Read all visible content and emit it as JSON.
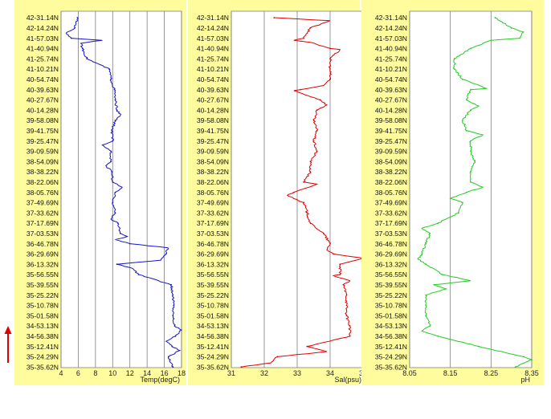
{
  "chart_data": {
    "type": "line",
    "latitude_labels": [
      "42-31.14N",
      "42-14.24N",
      "41-57.03N",
      "41-40.94N",
      "41-25.74N",
      "41-10.21N",
      "40-54.74N",
      "40-39.63N",
      "40-27.67N",
      "40-14.28N",
      "39-58.08N",
      "39-41.75N",
      "39-25.47N",
      "39-09.59N",
      "38-54.09N",
      "38-38.22N",
      "38-22.06N",
      "38-05.76N",
      "37-49.69N",
      "37-33.62N",
      "37-17.69N",
      "37-03.53N",
      "36-46.78N",
      "36-29.69N",
      "36-13.32N",
      "35-56.55N",
      "35-39.55N",
      "35-25.22N",
      "35-10.78N",
      "35-01.58N",
      "34-53.13N",
      "34-56.38N",
      "35-12.41N",
      "35-24.29N",
      "35-35.62N"
    ],
    "panels": [
      {
        "id": "temp",
        "xlabel": "Temp(degC)",
        "xlim": [
          4,
          18
        ],
        "ticks": [
          "4",
          "6",
          "8",
          "10",
          "12",
          "14",
          "16",
          "18"
        ],
        "color": "#1515c8",
        "values": [
          5.9,
          5.6,
          5.2,
          6.5,
          7.0,
          9.6,
          9.8,
          10.2,
          10.3,
          10.5,
          10.3,
          9.9,
          10.0,
          9.8,
          9.8,
          9.9,
          10.0,
          10.3,
          10.0,
          10.3,
          10.6,
          10.9,
          12.0,
          16.2,
          10.5,
          13.0,
          16.8,
          17.0,
          17.1,
          17.0,
          17.2,
          17.3,
          16.9,
          16.5,
          17.0
        ],
        "extra": [
          {
            "i": 1.5,
            "v": 4.6
          },
          {
            "i": 2.2,
            "v": 8.8
          },
          {
            "i": 2.5,
            "v": 6.3
          },
          {
            "i": 9.5,
            "v": 10.9
          },
          {
            "i": 12.4,
            "v": 8.8
          },
          {
            "i": 14.4,
            "v": 9.2
          },
          {
            "i": 16.5,
            "v": 11.1
          },
          {
            "i": 19.6,
            "v": 9.8
          },
          {
            "i": 21.3,
            "v": 11.7
          },
          {
            "i": 21.6,
            "v": 10.3
          },
          {
            "i": 22.4,
            "v": 16.4
          },
          {
            "i": 23.6,
            "v": 15.6
          },
          {
            "i": 24.4,
            "v": 12.3
          },
          {
            "i": 30.4,
            "v": 18.0
          },
          {
            "i": 31.5,
            "v": 16.2
          },
          {
            "i": 32.4,
            "v": 17.8
          }
        ]
      },
      {
        "id": "sal",
        "xlabel": "Sal(psu)",
        "xlim": [
          31,
          35
        ],
        "ticks": [
          "31",
          "32",
          "33",
          "34",
          "35"
        ],
        "color": "#e00000",
        "values": [
          32.3,
          33.4,
          33.2,
          34.0,
          34.0,
          34.0,
          34.0,
          33.1,
          33.7,
          33.6,
          33.5,
          33.6,
          33.5,
          33.6,
          33.4,
          33.4,
          33.2,
          32.9,
          33.2,
          33.3,
          33.4,
          33.8,
          34.0,
          34.1,
          34.3,
          34.3,
          34.4,
          34.5,
          34.5,
          34.5,
          34.6,
          34.6,
          33.3,
          32.4,
          31.3
        ],
        "extra": [
          {
            "i": 0.3,
            "v": 34.0
          },
          {
            "i": 2.2,
            "v": 32.9
          },
          {
            "i": 2.4,
            "v": 33.4
          },
          {
            "i": 3.1,
            "v": 34.3
          },
          {
            "i": 6.6,
            "v": 33.8
          },
          {
            "i": 7.1,
            "v": 32.9
          },
          {
            "i": 8.5,
            "v": 33.9
          },
          {
            "i": 16.2,
            "v": 33.6
          },
          {
            "i": 17.3,
            "v": 32.7
          },
          {
            "i": 22.6,
            "v": 33.9
          },
          {
            "i": 23.4,
            "v": 35.0
          },
          {
            "i": 25.1,
            "v": 34.1
          },
          {
            "i": 25.6,
            "v": 34.6
          },
          {
            "i": 32.5,
            "v": 33.9
          },
          {
            "i": 33.6,
            "v": 32.2
          }
        ]
      },
      {
        "id": "ph",
        "xlabel": "pH",
        "xlim": [
          8.05,
          8.35
        ],
        "ticks": [
          "8.05",
          "8.15",
          "8.25",
          "8.35"
        ],
        "color": "#22cc22",
        "values": [
          8.26,
          8.3,
          8.32,
          8.2,
          8.16,
          8.16,
          8.18,
          8.2,
          8.19,
          8.2,
          8.18,
          8.19,
          8.2,
          8.2,
          8.21,
          8.2,
          8.2,
          8.19,
          8.18,
          8.17,
          8.12,
          8.1,
          8.09,
          8.08,
          8.09,
          8.13,
          8.11,
          8.09,
          8.09,
          8.09,
          8.1,
          8.12,
          8.22,
          8.33,
          8.31
        ],
        "extra": [
          {
            "i": 1.4,
            "v": 8.33
          },
          {
            "i": 2.2,
            "v": 8.25
          },
          {
            "i": 6.9,
            "v": 8.24
          },
          {
            "i": 8.6,
            "v": 8.22
          },
          {
            "i": 11.4,
            "v": 8.23
          },
          {
            "i": 16.5,
            "v": 8.23
          },
          {
            "i": 17.6,
            "v": 8.15
          },
          {
            "i": 19.4,
            "v": 8.15
          },
          {
            "i": 20.5,
            "v": 8.08
          },
          {
            "i": 23.5,
            "v": 8.07
          },
          {
            "i": 25.6,
            "v": 8.2
          },
          {
            "i": 26.4,
            "v": 8.14
          },
          {
            "i": 30.5,
            "v": 8.08
          },
          {
            "i": 33.3,
            "v": 8.35
          }
        ]
      }
    ],
    "grid": true,
    "legend": "none"
  }
}
